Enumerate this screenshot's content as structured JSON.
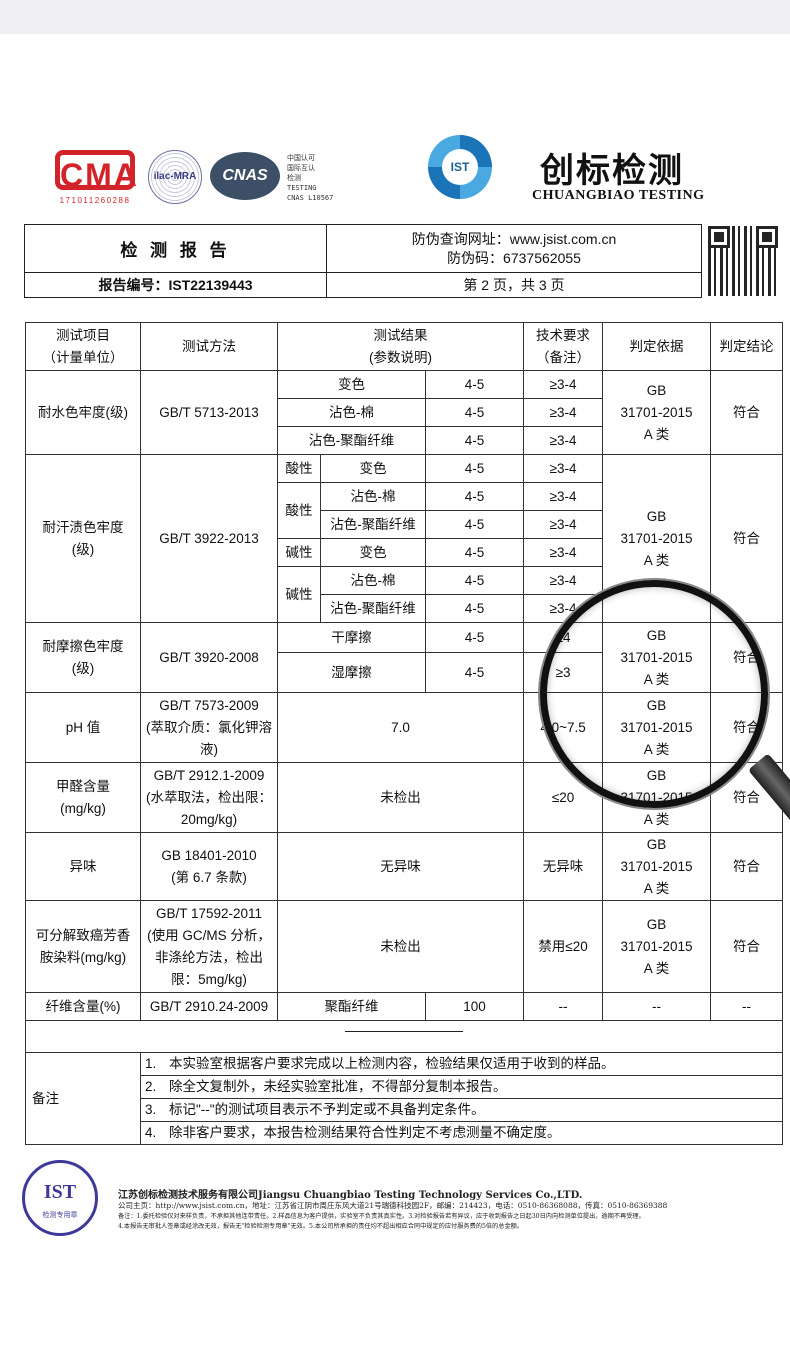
{
  "logos": {
    "cma_text": "CMA",
    "cma_number": "171011260288",
    "ilac_text": "ilac-MRA",
    "cnas_text": "CNAS",
    "cnas_caption": [
      "中国认可",
      "国际互认",
      "检测",
      "TESTING",
      "CNAS L10567"
    ],
    "ist_text": "IST"
  },
  "brand": {
    "name_cn": "创标检测",
    "name_en": "CHUANGBIAO TESTING"
  },
  "header": {
    "title": "检 测 报 告",
    "verify_url": "防伪查询网址：www.jsist.com.cn",
    "verify_code": "防伪码：6737562055",
    "report_no": "报告编号：IST22139443",
    "page": "第 2 页，共 3 页"
  },
  "table": {
    "headers": [
      "测试项目\n（计量单位）",
      "测试方法",
      "测试结果\n(参数说明)",
      "技术要求\n（备注）",
      "判定依据",
      "判定结论"
    ],
    "basis": "GB\n31701-2015\nA 类",
    "pass": "符合",
    "water": {
      "item": "耐水色牢度(级)",
      "method": "GB/T 5713-2013",
      "rows": [
        [
          "变色",
          "4-5",
          "≥3-4"
        ],
        [
          "沾色-棉",
          "4-5",
          "≥3-4"
        ],
        [
          "沾色-聚酯纤维",
          "4-5",
          "≥3-4"
        ]
      ]
    },
    "sweat": {
      "item": "耐汗渍色牢度\n(级)",
      "method": "GB/T 3922-2013",
      "acid": "酸性",
      "alkali": "碱性",
      "rows": [
        [
          "变色",
          "4-5",
          "≥3-4"
        ],
        [
          "沾色-棉",
          "4-5",
          "≥3-4"
        ],
        [
          "沾色-聚酯纤维",
          "4-5",
          "≥3-4"
        ],
        [
          "变色",
          "4-5",
          "≥3-4"
        ],
        [
          "沾色-棉",
          "4-5",
          "≥3-4"
        ],
        [
          "沾色-聚酯纤维",
          "4-5",
          "≥3-4"
        ]
      ]
    },
    "rub": {
      "item": "耐摩擦色牢度\n(级)",
      "method": "GB/T 3920-2008",
      "rows": [
        [
          "干摩擦",
          "4-5",
          "≥4"
        ],
        [
          "湿摩擦",
          "4-5",
          "≥3"
        ]
      ]
    },
    "ph": {
      "item": "pH 值",
      "method": "GB/T 7573-2009\n(萃取介质：氯化钾溶\n液)",
      "result": "7.0",
      "req": "4.0~7.5"
    },
    "formaldehyde": {
      "item": "甲醛含量\n(mg/kg)",
      "method": "GB/T 2912.1-2009\n(水萃取法，检出限：\n20mg/kg)",
      "result": "未检出",
      "req": "≤20"
    },
    "odor": {
      "item": "异味",
      "method": "GB 18401-2010\n(第 6.7 条款)",
      "result": "无异味",
      "req": "无异味"
    },
    "azo": {
      "item": "可分解致癌芳香\n胺染料(mg/kg)",
      "method": "GB/T 17592-2011\n(使用 GC/MS 分析，\n非涤纶方法，检出\n限：5mg/kg)",
      "result": "未检出",
      "req": "禁用≤20"
    },
    "fiber": {
      "item": "纤维含量(%)",
      "method": "GB/T 2910.24-2009",
      "component": "聚酯纤维",
      "value": "100",
      "req": "--",
      "basis": "--",
      "conclusion": "--"
    },
    "notes_label": "备注",
    "notes": [
      [
        "1.",
        "本实验室根据客户要求完成以上检测内容，检验结果仅适用于收到的样品。"
      ],
      [
        "2.",
        "除全文复制外，未经实验室批准，不得部分复制本报告。"
      ],
      [
        "3.",
        "标记\"--\"的测试项目表示不予判定或不具备判定条件。"
      ],
      [
        "4.",
        "除非客户要求，本报告检测结果符合性判定不考虑测量不确定度。"
      ]
    ]
  },
  "footer": {
    "seal_text": "IST",
    "seal_sub": "检测专用章",
    "company": "江苏创标检测技术服务有限公司Jiangsu Chuangbiao Testing Technology Services Co.,LTD.",
    "address": "公司主页：http://www.jsist.com.cn，地址：江苏省江阴市周庄东风大道21号瑞德科技园2F，邮编：214423，电话：0510-86368088，传真：0510-86369388",
    "remark1": "备注：1.委托检验仅对来样负责，不承担其他连带责任。2.样品信息为客户提供，实验室不负责其真实性。3.对检验报告若有异议，应于收到报告之日起30日内向检测单位提出，逾期不再受理。",
    "remark2": "4.本报告无审批人签章或经涂改无效，报告无\"检验检测专用章\"无效。5.本公司所承担的责任均不超出相应合同中规定的应付服务费的5倍的总金额。"
  }
}
